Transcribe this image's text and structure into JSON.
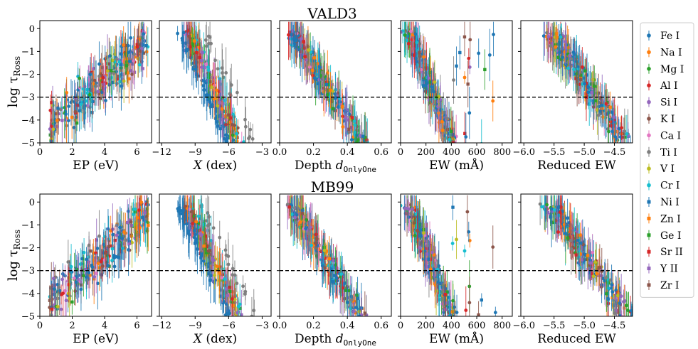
{
  "figure": {
    "y_axis_label_main": "log τ",
    "y_axis_label_sub": "Ross"
  },
  "legend": {
    "entries": [
      {
        "label": "Fe I",
        "color": "#1f77b4"
      },
      {
        "label": "Na I",
        "color": "#ff7f0e"
      },
      {
        "label": "Mg I",
        "color": "#2ca02c"
      },
      {
        "label": "Al I",
        "color": "#d62728"
      },
      {
        "label": "Si I",
        "color": "#9467bd"
      },
      {
        "label": "K I",
        "color": "#8c564b"
      },
      {
        "label": "Ca I",
        "color": "#e377c2"
      },
      {
        "label": "Ti I",
        "color": "#7f7f7f"
      },
      {
        "label": "V I",
        "color": "#bcbd22"
      },
      {
        "label": "Cr I",
        "color": "#17becf"
      },
      {
        "label": "Ni I",
        "color": "#1f77b4"
      },
      {
        "label": "Zn I",
        "color": "#ff7f0e"
      },
      {
        "label": "Ge I",
        "color": "#2ca02c"
      },
      {
        "label": "Sr II",
        "color": "#d62728"
      },
      {
        "label": "Y II",
        "color": "#9467bd"
      },
      {
        "label": "Zr I",
        "color": "#8c564b"
      }
    ]
  },
  "chart_data": [
    {
      "row_title": "VALD3",
      "type": "scatter",
      "ylim": [
        -5,
        0.35
      ],
      "yticks": [
        0,
        -1,
        -2,
        -3,
        -4,
        -5
      ],
      "reference_line_y": -3,
      "panels": [
        {
          "xlabel": "EP  (eV)",
          "xlim": [
            0,
            6.9
          ],
          "xticks": [
            0,
            2,
            4,
            6
          ]
        },
        {
          "xlabel_main": "X",
          "xlabel_rest": "  (dex)",
          "xlim": [
            -12.2,
            -2.2
          ],
          "xticks": [
            -12,
            -9,
            -6,
            -3
          ]
        },
        {
          "xlabel_main": "Depth ",
          "xlabel_d": "d",
          "xlabel_sub": "OnlyOne",
          "xlim": [
            0,
            0.66
          ],
          "xticks": [
            0.0,
            0.2,
            0.4,
            0.6
          ]
        },
        {
          "xlabel": "EW  (mÅ)",
          "xlim": [
            0,
            880
          ],
          "xticks": [
            0,
            200,
            400,
            600,
            800
          ]
        },
        {
          "xlabel": "Reduced EW",
          "xlim": [
            -6.05,
            -4.2
          ],
          "xticks": [
            -6.0,
            -5.5,
            -5.0,
            -4.5
          ]
        }
      ]
    },
    {
      "row_title": "MB99",
      "type": "scatter",
      "ylim": [
        -5,
        0.35
      ],
      "yticks": [
        0,
        -1,
        -2,
        -3,
        -4,
        -5
      ],
      "reference_line_y": -3,
      "panels": [
        {
          "xlabel": "EP  (eV)",
          "xlim": [
            0,
            6.9
          ],
          "xticks": [
            0,
            2,
            4,
            6
          ]
        },
        {
          "xlabel_main": "X",
          "xlabel_rest": "  (dex)",
          "xlim": [
            -12.2,
            -2.2
          ],
          "xticks": [
            -12,
            -9,
            -6,
            -3
          ]
        },
        {
          "xlabel_main": "Depth ",
          "xlabel_d": "d",
          "xlabel_sub": "OnlyOne",
          "xlim": [
            0,
            0.66
          ],
          "xticks": [
            0.0,
            0.2,
            0.4,
            0.6
          ]
        },
        {
          "xlabel": "EW  (mÅ)",
          "xlim": [
            0,
            880
          ],
          "xticks": [
            0,
            200,
            400,
            600,
            800
          ]
        },
        {
          "xlabel": "Reduced EW",
          "xlim": [
            -6.05,
            -4.2
          ],
          "xticks": [
            -6.0,
            -5.5,
            -5.0,
            -4.5
          ]
        }
      ]
    }
  ]
}
